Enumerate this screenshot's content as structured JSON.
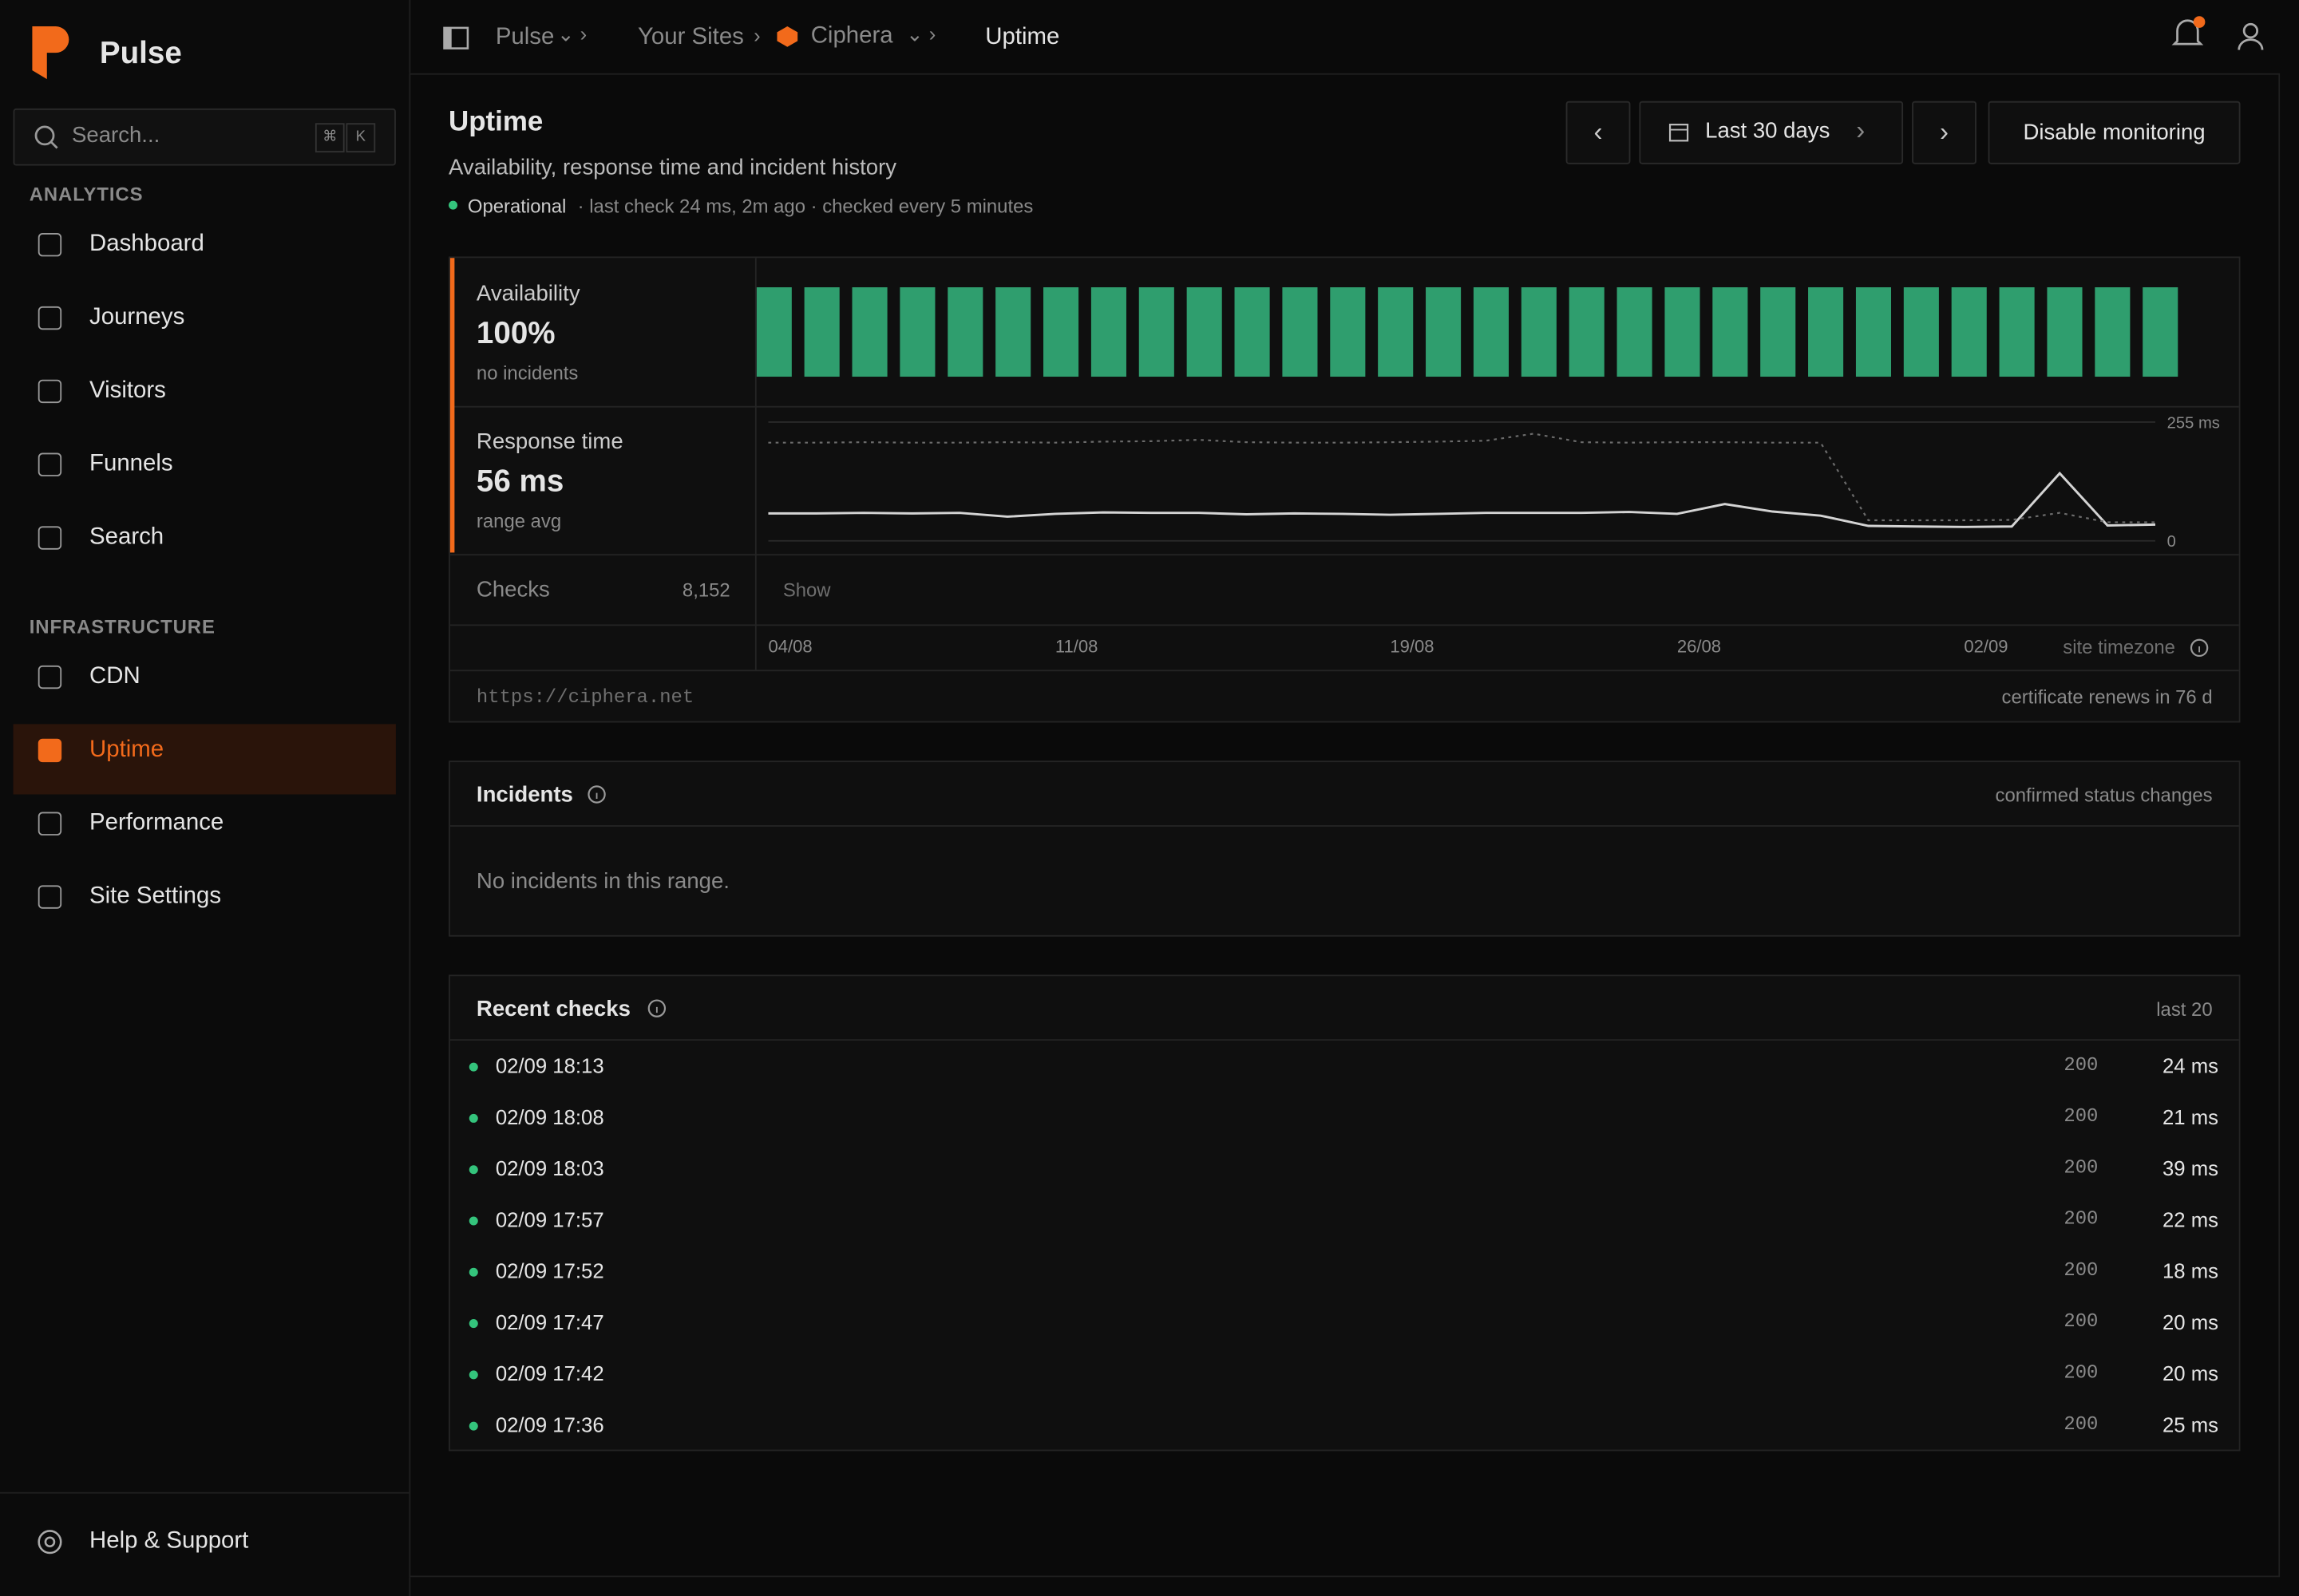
{
  "brand": "Pulse",
  "search": {
    "placeholder": "Search...",
    "keys": [
      "⌘",
      "K"
    ]
  },
  "nav": [
    {
      "section": "ANALYTICS",
      "items": [
        "Dashboard",
        "Journeys",
        "Visitors",
        "Funnels",
        "Search"
      ]
    },
    {
      "section": "INFRASTRUCTURE",
      "items": [
        "CDN",
        "Uptime",
        "Performance",
        "Site Settings"
      ]
    }
  ],
  "help": "Help & Support",
  "breadcrumbs": [
    "Pulse",
    "Your Sites",
    "Ciphera",
    "Uptime"
  ],
  "header": {
    "title": "Uptime",
    "subtitle": "Availability, response time and incident history",
    "status": "Operational",
    "status_detail": "· last check 24 ms, 2m ago · checked every 5 minutes"
  },
  "actions": {
    "range": "Last 30 days",
    "disable": "Disable monitoring"
  },
  "availability": {
    "label": "Availability",
    "value": "100%",
    "note": "no incidents"
  },
  "response": {
    "label": "Response time",
    "value": "56 ms",
    "note": "range avg"
  },
  "checks": {
    "label": "Checks",
    "count": "8,152",
    "toggle": "Show"
  },
  "timezone": "site timezone",
  "url": "https://ciphera.net",
  "cert": "certificate renews in 76 d",
  "chart_data": [
    {
      "type": "bar",
      "values": [
        100,
        100,
        100,
        100,
        100,
        100,
        100,
        100,
        100,
        100,
        100,
        100,
        100,
        100,
        100,
        100,
        100,
        100,
        100,
        100,
        100,
        100,
        100,
        100,
        100,
        100,
        100,
        100,
        100,
        100
      ],
      "color": "#2f9e6e",
      "ylim": [
        0,
        100
      ]
    },
    {
      "type": "line",
      "x": [
        0,
        1,
        2,
        3,
        4,
        5,
        6,
        7,
        8,
        9,
        10,
        11,
        12,
        13,
        14,
        15,
        16,
        17,
        18,
        19,
        20,
        21,
        22,
        23,
        24,
        25,
        26,
        27,
        28,
        29
      ],
      "xlim": [
        0,
        29
      ],
      "xticks": [
        {
          "value": 0,
          "label": "04/08"
        },
        {
          "value": 6,
          "label": "11/08"
        },
        {
          "value": 13,
          "label": "19/08"
        },
        {
          "value": 19,
          "label": "26/08"
        },
        {
          "value": 25,
          "label": "02/09"
        }
      ],
      "ylim": [
        0,
        255
      ],
      "yticks": [
        {
          "value": 0,
          "label": "0"
        },
        {
          "value": 255,
          "label": "255 ms"
        }
      ],
      "series": [
        {
          "color": "#d4d4d4",
          "values": [
            59,
            59,
            60,
            59,
            60,
            52,
            58,
            61,
            60,
            60,
            57,
            59,
            58,
            56,
            58,
            60,
            60,
            60,
            62,
            58,
            79,
            63,
            54,
            32,
            31,
            30,
            31,
            145,
            33,
            35
          ]
        },
        {
          "color": "#6b6b6b",
          "dashed": true,
          "values": [
            211,
            211,
            212,
            211,
            211,
            212,
            211,
            213,
            214,
            217,
            212,
            211,
            211,
            212,
            213,
            215,
            230,
            212,
            211,
            212,
            212,
            211,
            211,
            44,
            44,
            44,
            45,
            60,
            40,
            40
          ]
        }
      ]
    }
  ],
  "incidents": {
    "title": "Incidents",
    "note": "confirmed status changes",
    "empty": "No incidents in this range."
  },
  "recent": {
    "title": "Recent checks",
    "note": "last 20",
    "rows": [
      [
        "02/09 18:13",
        "200",
        "24 ms"
      ],
      [
        "02/09 18:08",
        "200",
        "21 ms"
      ],
      [
        "02/09 18:03",
        "200",
        "39 ms"
      ],
      [
        "02/09 17:57",
        "200",
        "22 ms"
      ],
      [
        "02/09 17:52",
        "200",
        "18 ms"
      ],
      [
        "02/09 17:47",
        "200",
        "20 ms"
      ],
      [
        "02/09 17:42",
        "200",
        "20 ms"
      ],
      [
        "02/09 17:36",
        "200",
        "25 ms"
      ]
    ]
  }
}
